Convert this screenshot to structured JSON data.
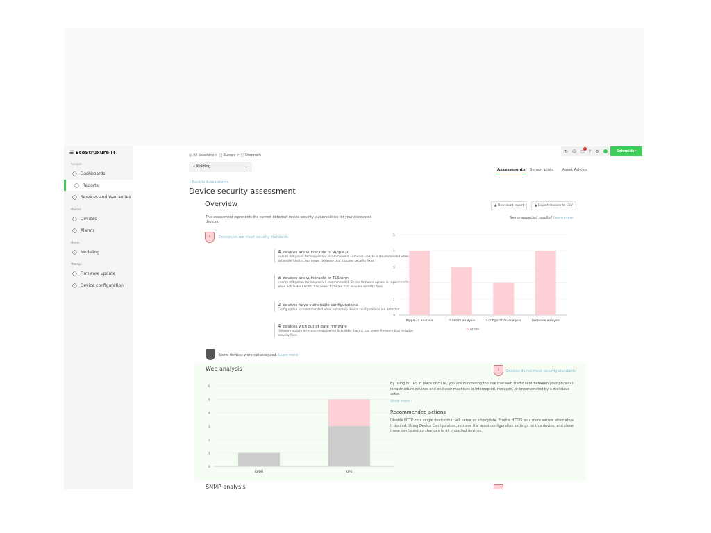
{
  "app": {
    "logo": "EcoStruxure IT",
    "brand": "Schneider Electric",
    "accent": "#3dcd58",
    "notification_count": "1"
  },
  "sidebar": {
    "sections": [
      {
        "label": "Analyze",
        "items": [
          {
            "label": "Dashboards",
            "icon": "eye-icon"
          },
          {
            "label": "Reports",
            "icon": "report-icon",
            "active": true
          },
          {
            "label": "Services and Warranties",
            "icon": "services-icon"
          }
        ]
      },
      {
        "label": "Monitor",
        "items": [
          {
            "label": "Devices",
            "icon": "device-icon"
          },
          {
            "label": "Alarms",
            "icon": "alarm-icon"
          }
        ]
      },
      {
        "label": "Model",
        "items": [
          {
            "label": "Modeling",
            "icon": "cube-icon"
          }
        ]
      },
      {
        "label": "Manage",
        "items": [
          {
            "label": "Firmware update",
            "icon": "clock-icon"
          },
          {
            "label": "Device configuration",
            "icon": "config-icon"
          }
        ]
      }
    ]
  },
  "breadcrumb": [
    "All locations",
    "Europe",
    "Denmark"
  ],
  "location_select": "Kolding",
  "back_link": "Back to Assessments",
  "page_title": "Device security assessment",
  "tabs": [
    {
      "label": "Assessments",
      "active": true
    },
    {
      "label": "Sensor plots"
    },
    {
      "label": "Asset Advisor"
    }
  ],
  "overview": {
    "title": "Overview",
    "download": "Download report",
    "export": "Export devices to CSV",
    "description": "This assessment represents the current detected device security vulnerabilities for your discovered devices.",
    "unexpected": "See unexpected results?",
    "learn_more": "Learn more",
    "badge": "4",
    "badge_text": "Devices do not meet security standards",
    "items": [
      {
        "count": "4",
        "title": "devices are vulnerable to Ripple20",
        "desc": "Interim mitigation techniques are recommended. Firmware update is recommended when Schneider Electric has newer firmware that includes security fixes."
      },
      {
        "count": "3",
        "title": "devices are vulnerable to TLStorm",
        "desc": "Interim mitigation techniques are recommended. Device firmware update is recommended when Schneider Electric has newer firmware that includes security fixes."
      },
      {
        "count": "2",
        "title": "devices have vulnerable configurations",
        "desc": "Configuration is recommended when vulnerable device configurations are detected."
      },
      {
        "count": "4",
        "title": "devices with out of date firmware",
        "desc": "Firmware update is recommended when Schneider Electric has newer firmware that includes security fixes."
      }
    ],
    "not_analyzed": "Some devices were not analyzed.",
    "not_analyzed_link": "Learn more"
  },
  "web": {
    "title": "Web analysis",
    "badge": "2",
    "badge_text": "Devices do not meet security standards",
    "desc": "By using HTTPS in place of HTTP, you are minimizing the risk that web traffic sent between your physical infrastructure devices and end user machines is intercepted, replayed, or impersonated by a malicious actor.",
    "show_more": "Show more",
    "rec_title": "Recommended actions",
    "rec_text": "Disable HTTP on a single device that will serve as a template. Enable HTTPS as a more secure alternative if desired. Using Device Configuration, retrieve the latest configuration settings for this device, and clone these configuration changes to all impacted devices."
  },
  "snmp": {
    "title": "SNMP analysis"
  },
  "chart_data": [
    {
      "type": "bar",
      "categories": [
        "Ripple20 analysis",
        "TLStorm analysis",
        "Configuration analysis",
        "Firmware analysis"
      ],
      "series": [
        {
          "name": "At risk",
          "values": [
            4,
            3,
            2,
            4
          ],
          "color": "#fdd0d5"
        }
      ],
      "ylim": [
        0,
        5
      ],
      "yticks": [
        0,
        1,
        2,
        3,
        4,
        5
      ],
      "grid": true,
      "legend": "bottom"
    },
    {
      "type": "bar",
      "stacked": true,
      "categories": [
        "RPDU",
        "UPS"
      ],
      "series": [
        {
          "name": "Not analyzed",
          "values": [
            1,
            3
          ],
          "color": "#cccccc"
        },
        {
          "name": "At risk",
          "values": [
            0,
            2
          ],
          "color": "#fdd0d5"
        }
      ],
      "ylim": [
        0,
        6
      ],
      "yticks": [
        0,
        1,
        2,
        3,
        4,
        5,
        6
      ],
      "grid": true,
      "legend": "bottom"
    }
  ]
}
